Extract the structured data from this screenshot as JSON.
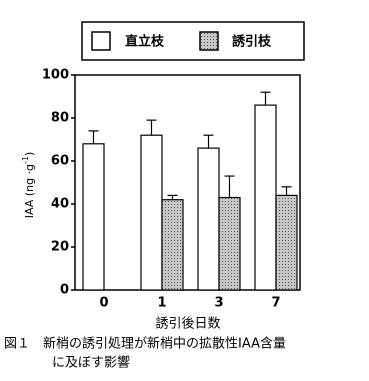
{
  "chart_data": {
    "type": "bar",
    "categories": [
      "0",
      "1",
      "3",
      "7"
    ],
    "series": [
      {
        "name": "直立枝",
        "color": "#ffffff",
        "values": [
          68,
          72,
          66,
          86
        ],
        "errors": [
          6,
          7,
          6,
          6
        ]
      },
      {
        "name": "誘引枝",
        "color": "#a6a6a6",
        "values": [
          null,
          42,
          43,
          44
        ],
        "errors": [
          null,
          2,
          10,
          4
        ]
      }
    ],
    "ylim": [
      0,
      100
    ],
    "yticks": [
      0,
      20,
      40,
      60,
      80,
      100
    ],
    "y_label": {
      "text": "IAA (ng ·g",
      "superscript": "-1",
      "suffix": ")"
    },
    "x_label": "誘引後日数",
    "caption": [
      "図１　新梢の誘引処理が新梢中の拡散性IAA含量",
      "に及ぼす影響"
    ]
  }
}
